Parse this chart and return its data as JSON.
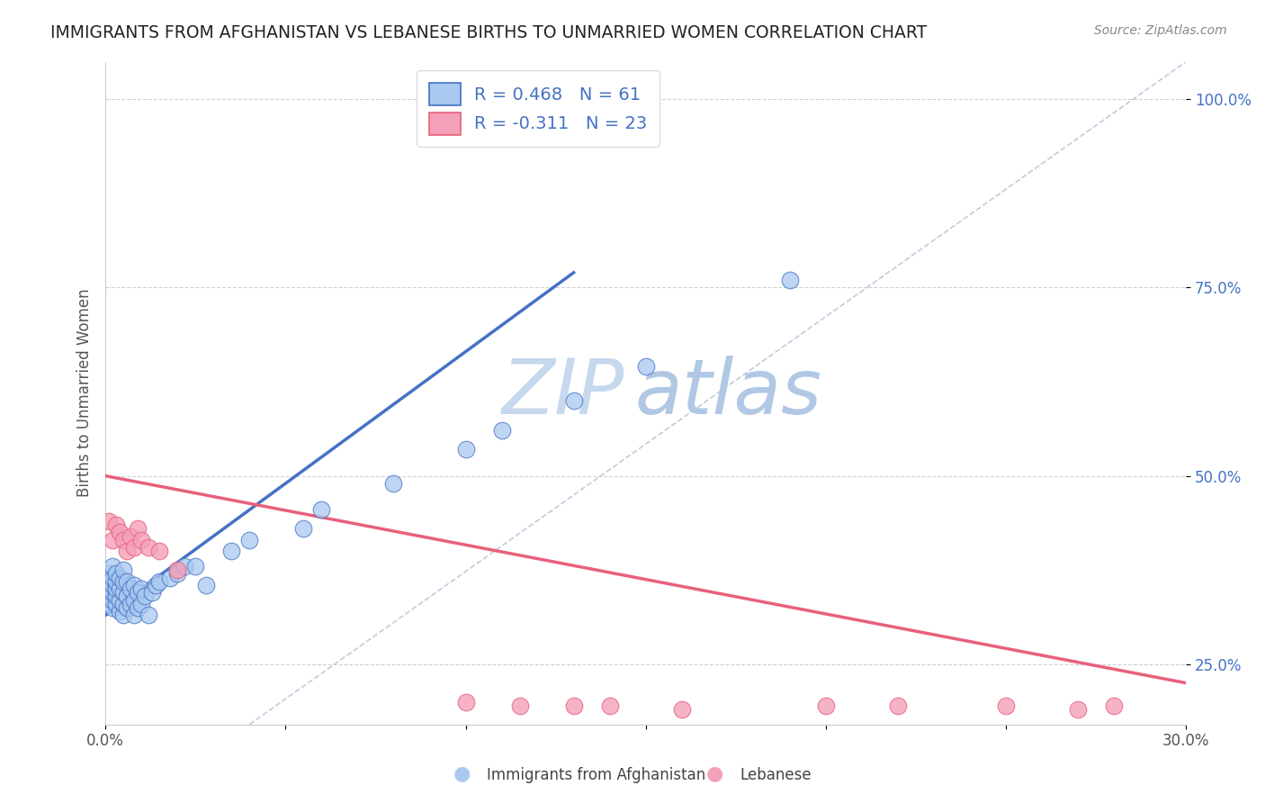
{
  "title": "IMMIGRANTS FROM AFGHANISTAN VS LEBANESE BIRTHS TO UNMARRIED WOMEN CORRELATION CHART",
  "source": "Source: ZipAtlas.com",
  "ylabel": "Births to Unmarried Women",
  "legend_label1": "Immigrants from Afghanistan",
  "legend_label2": "Lebanese",
  "r1": 0.468,
  "n1": 61,
  "r2": -0.311,
  "n2": 23,
  "xlim": [
    0.0,
    0.3
  ],
  "ylim": [
    0.17,
    1.05
  ],
  "x_ticks": [
    0.0,
    0.05,
    0.1,
    0.15,
    0.2,
    0.25,
    0.3
  ],
  "x_tick_labels": [
    "0.0%",
    "",
    "",
    "",
    "",
    "",
    "30.0%"
  ],
  "y_ticks": [
    0.25,
    0.5,
    0.75,
    1.0
  ],
  "y_tick_labels": [
    "25.0%",
    "50.0%",
    "75.0%",
    "100.0%"
  ],
  "color_blue": "#a8c8f0",
  "color_pink": "#f4a0b8",
  "color_blue_line": "#4472c4",
  "color_pink_line": "#e8607a",
  "color_diag": "#b8c8d8",
  "watermark_zip": "ZIP",
  "watermark_atlas": "atlas",
  "watermark_color_zip": "#c8d8e8",
  "watermark_color_atlas": "#b0c4d8",
  "blue_scatter_x": [
    0.0008,
    0.001,
    0.001,
    0.001,
    0.0012,
    0.0012,
    0.0015,
    0.0015,
    0.0015,
    0.002,
    0.002,
    0.002,
    0.002,
    0.002,
    0.002,
    0.003,
    0.003,
    0.003,
    0.003,
    0.003,
    0.004,
    0.004,
    0.004,
    0.004,
    0.005,
    0.005,
    0.005,
    0.005,
    0.005,
    0.006,
    0.006,
    0.006,
    0.007,
    0.007,
    0.008,
    0.008,
    0.008,
    0.009,
    0.009,
    0.01,
    0.01,
    0.011,
    0.012,
    0.013,
    0.014,
    0.015,
    0.018,
    0.02,
    0.022,
    0.025,
    0.028,
    0.035,
    0.04,
    0.055,
    0.06,
    0.08,
    0.1,
    0.11,
    0.13,
    0.15,
    0.19
  ],
  "blue_scatter_y": [
    0.355,
    0.34,
    0.355,
    0.37,
    0.345,
    0.36,
    0.33,
    0.345,
    0.36,
    0.325,
    0.335,
    0.345,
    0.355,
    0.365,
    0.38,
    0.33,
    0.34,
    0.35,
    0.36,
    0.37,
    0.32,
    0.335,
    0.35,
    0.365,
    0.315,
    0.33,
    0.345,
    0.36,
    0.375,
    0.325,
    0.34,
    0.36,
    0.33,
    0.35,
    0.315,
    0.335,
    0.355,
    0.325,
    0.345,
    0.33,
    0.35,
    0.34,
    0.315,
    0.345,
    0.355,
    0.36,
    0.365,
    0.37,
    0.38,
    0.38,
    0.355,
    0.4,
    0.415,
    0.43,
    0.455,
    0.49,
    0.535,
    0.56,
    0.6,
    0.645,
    0.76
  ],
  "pink_scatter_x": [
    0.001,
    0.002,
    0.003,
    0.004,
    0.005,
    0.006,
    0.007,
    0.008,
    0.009,
    0.01,
    0.012,
    0.015,
    0.02,
    0.1,
    0.14,
    0.16,
    0.2,
    0.22,
    0.25,
    0.27,
    0.28,
    0.115,
    0.13
  ],
  "pink_scatter_y": [
    0.44,
    0.415,
    0.435,
    0.425,
    0.415,
    0.4,
    0.42,
    0.405,
    0.43,
    0.415,
    0.405,
    0.4,
    0.375,
    0.2,
    0.195,
    0.19,
    0.195,
    0.195,
    0.195,
    0.19,
    0.195,
    0.195,
    0.195
  ],
  "blue_line_x": [
    0.0,
    0.13
  ],
  "blue_line_y": [
    0.315,
    0.77
  ],
  "pink_line_x": [
    0.0,
    0.3
  ],
  "pink_line_y": [
    0.5,
    0.225
  ],
  "diag_line_x": [
    0.04,
    0.3
  ],
  "diag_line_y": [
    0.17,
    1.05
  ]
}
